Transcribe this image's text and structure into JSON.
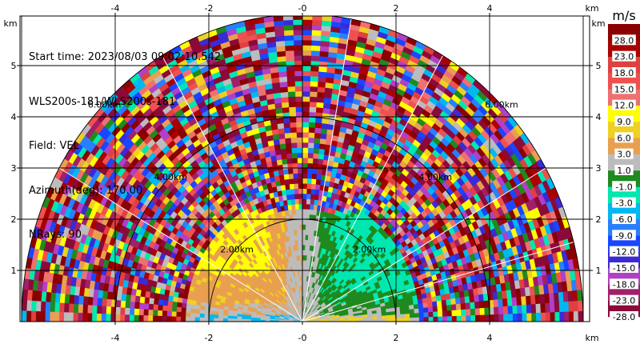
{
  "info": {
    "start_time": "Start time: 2023/08/03 09:02:10.542",
    "instrument": "WLS200s-181/WLS200s-181",
    "field": "Field: VEL",
    "azimuth": "Azimuth(deg): 170.00",
    "nrays": "NRays: 90"
  },
  "axes": {
    "x_unit": "km",
    "y_unit": "km",
    "x_ticks": [
      "-4",
      "-2",
      "-0",
      "2",
      "4"
    ],
    "y_ticks": [
      "1",
      "2",
      "3",
      "4",
      "5"
    ]
  },
  "colorbar": {
    "title": "m/s",
    "labels": [
      "-28.0",
      "-23.0",
      "-18.0",
      "-15.0",
      "-12.0",
      "-9.0",
      "-6.0",
      "-3.0",
      "-1.0",
      "1.0",
      "3.0",
      "6.0",
      "9.0",
      "12.0",
      "15.0",
      "18.0",
      "23.0",
      "28.0"
    ],
    "colors": [
      "#8b0a3a",
      "#a0206a",
      "#b040c8",
      "#3a2bd6",
      "#1a46ff",
      "#2a7fff",
      "#00b8f0",
      "#00e8b0",
      "#1f8a1f",
      "#bcbcbc",
      "#e8a050",
      "#f0d020",
      "#ffff00",
      "#f07070",
      "#f05050",
      "#e04040",
      "#aa0000",
      "#8b0000"
    ]
  },
  "chart_data": {
    "type": "heatmap",
    "subtype": "RHI range-height scan",
    "field": "VEL",
    "azimuth_deg": 170.0,
    "nrays": 90,
    "xlim_km": [
      -6.35,
      6.35
    ],
    "ylim_km": [
      0,
      6.0
    ],
    "max_range_km": 6.0,
    "range_rings_km": [
      2.0,
      4.0,
      6.0
    ],
    "ring_labels": [
      "2.00km",
      "4.00km",
      "6.00km"
    ],
    "colorbar_range": [
      -28.0,
      28.0
    ],
    "grid": true
  }
}
